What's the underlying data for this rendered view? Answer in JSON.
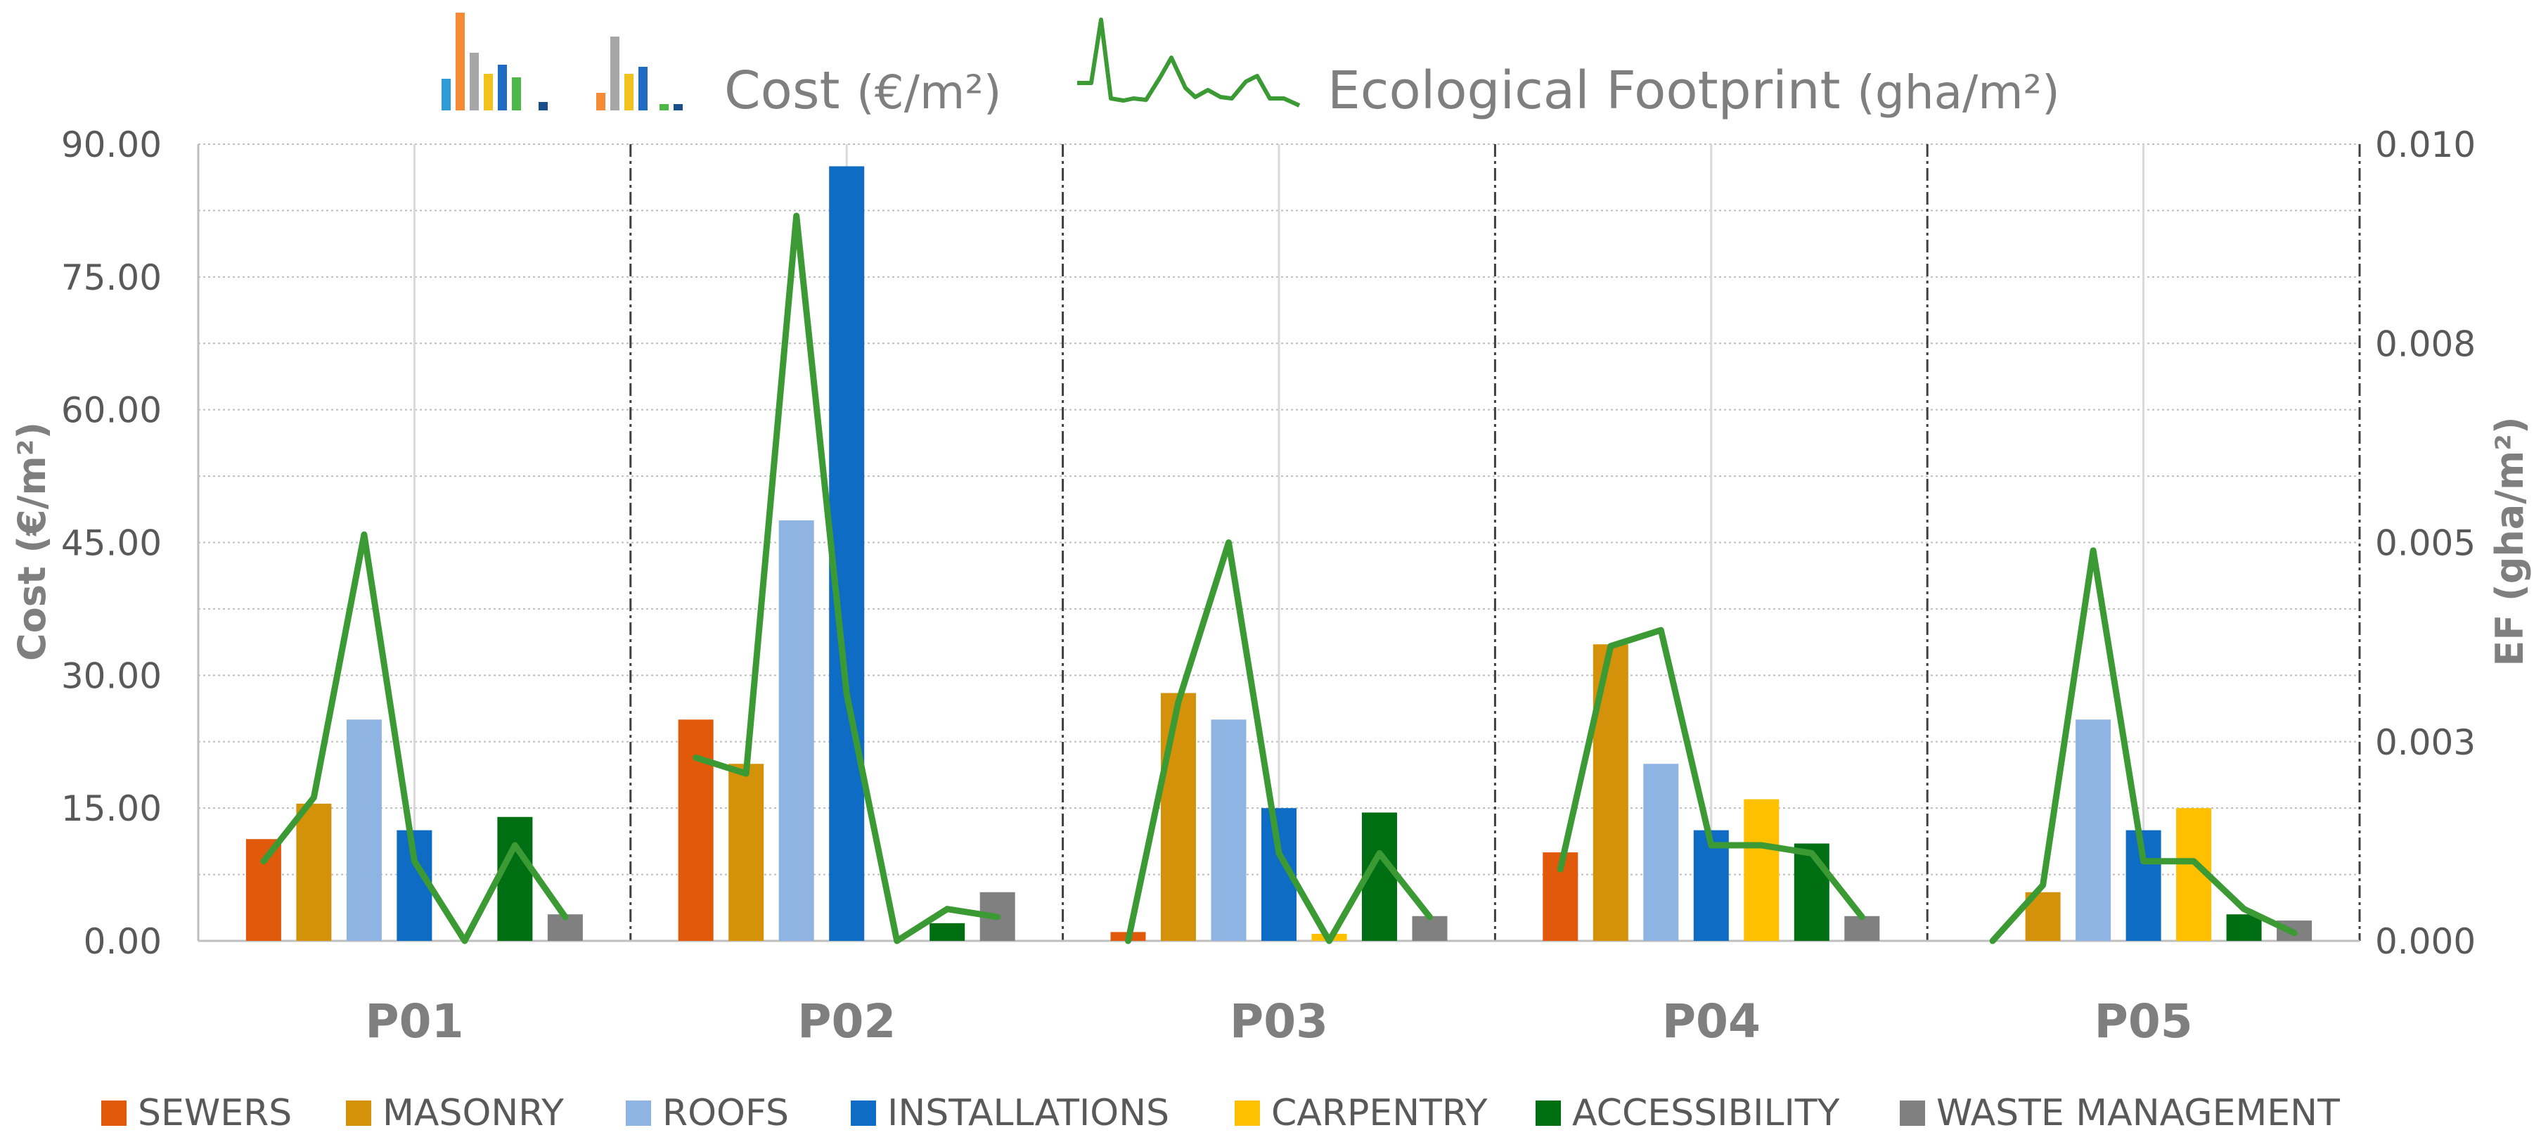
{
  "chart_data": {
    "type": "bar",
    "title_cost": "Cost",
    "title_cost_unit": "(€/m²)",
    "title_ef": "Ecological Footprint",
    "title_ef_unit": "(gha/m²)",
    "ylabel": "Cost (€/m²)",
    "y2label": "EF (gha/m²)",
    "ylim": [
      0,
      90
    ],
    "y2lim": [
      0,
      0.01
    ],
    "yticks": [
      "0.00",
      "15.00",
      "30.00",
      "45.00",
      "60.00",
      "75.00",
      "90.00"
    ],
    "y2ticks": [
      "0.000",
      "0.003",
      "0.005",
      "0.008",
      "0.010"
    ],
    "y2tick_values": [
      0,
      0.0025,
      0.005,
      0.0075,
      0.01
    ],
    "groups": [
      "P01",
      "P02",
      "P03",
      "P04",
      "P05"
    ],
    "categories": [
      "SEWERS",
      "MASONRY",
      "ROOFS",
      "INSTALLATIONS",
      "CARPENTRY",
      "ACCESSIBILITY",
      "WASTE MANAGEMENT"
    ],
    "colors": [
      "#E15A0B",
      "#D4920A",
      "#8FB3E2",
      "#0E6CC4",
      "#FFC000",
      "#006E12",
      "#808080"
    ],
    "line_color": "#3C9A35",
    "cost": [
      [
        11.5,
        15.5,
        25.0,
        12.5,
        0,
        14.0,
        3.0
      ],
      [
        25.0,
        20.0,
        47.5,
        87.5,
        0,
        2.0,
        5.5
      ],
      [
        1.0,
        28.0,
        25.0,
        15.0,
        0.8,
        14.5,
        2.8
      ],
      [
        10.0,
        33.5,
        20.0,
        12.5,
        16.0,
        11.0,
        2.8
      ],
      [
        0,
        5.5,
        25.0,
        12.5,
        15.0,
        3.0,
        2.3
      ]
    ],
    "ef": [
      [
        0.001,
        0.0018,
        0.0051,
        0.001,
        0.0,
        0.0012,
        0.0003
      ],
      [
        0.0023,
        0.0021,
        0.0091,
        0.0031,
        0.0,
        0.0004,
        0.0003
      ],
      [
        0.0,
        0.003,
        0.005,
        0.0011,
        0.0,
        0.0011,
        0.0003
      ],
      [
        0.0009,
        0.0037,
        0.0039,
        0.0012,
        0.0012,
        0.0011,
        0.0003
      ],
      [
        0.0,
        0.0007,
        0.0049,
        0.001,
        0.001,
        0.0004,
        0.0001
      ]
    ]
  }
}
